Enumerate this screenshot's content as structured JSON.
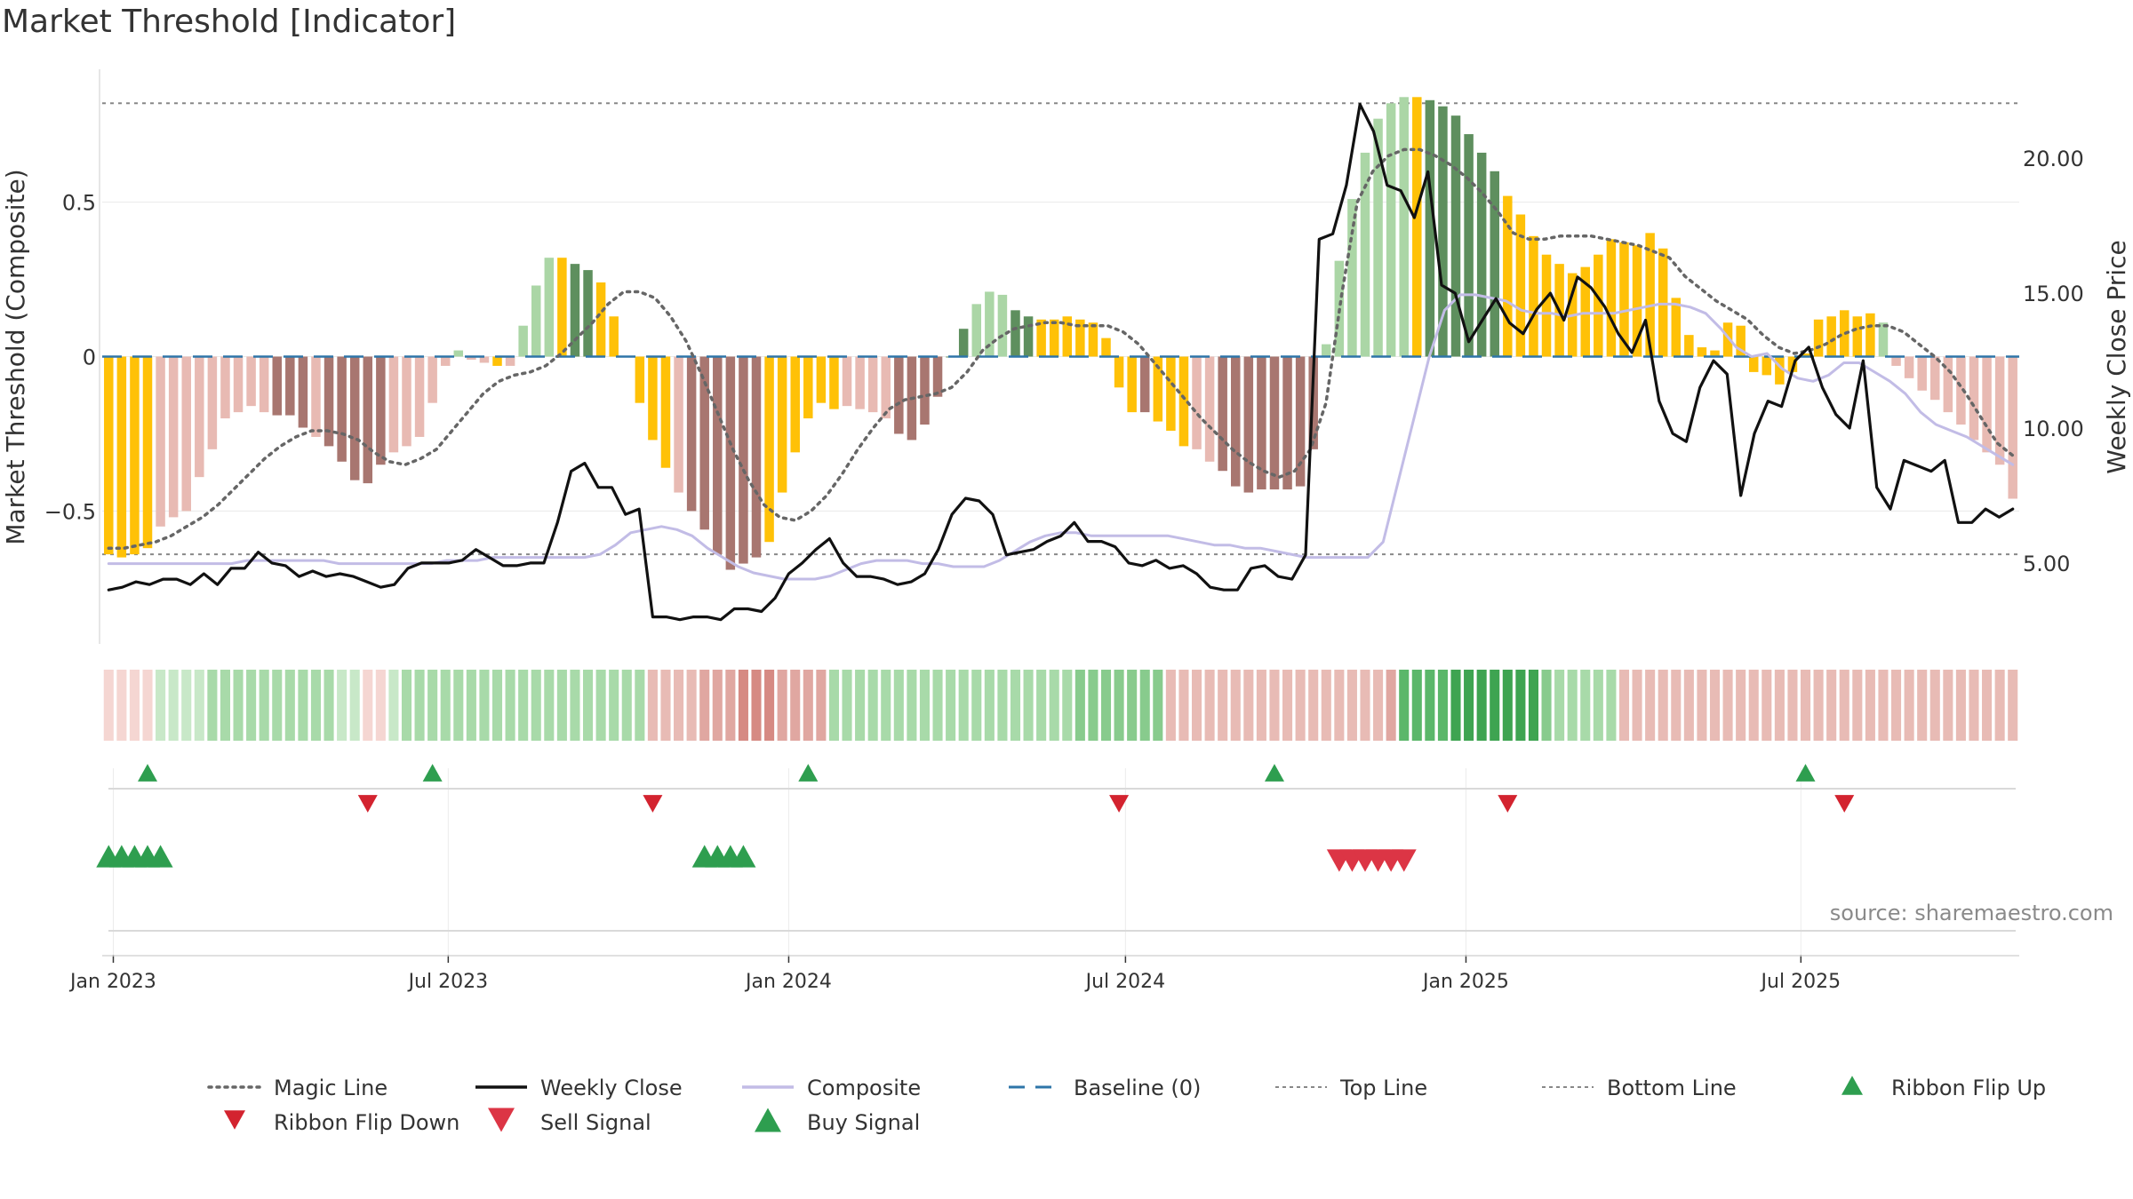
{
  "title": "Market Threshold [Indicator]",
  "source": "source: sharemaestro.com",
  "colors": {
    "gold": "#FFC107",
    "dark_red": "#A87670",
    "light_red": "#E8BAB3",
    "dark_green": "#5E8F5E",
    "light_green": "#ABD6A6",
    "close": "#111111",
    "composite": "#C2BCE6",
    "magic": "#666666",
    "baseline": "#2E75A8",
    "guide": "#888888",
    "flip_up": "#2E9E4F",
    "flip_down": "#D3232F",
    "sell": "#DC3545",
    "buy": "#2E9E4F"
  },
  "chart_data": {
    "type": "bar",
    "start_date": "2022-12-26",
    "period_days": 7,
    "ylabel": "Market Threshold (Composite)",
    "y2label": "Weekly Close Price",
    "ylim": [
      -0.93,
      0.93
    ],
    "y2lim": [
      2.0,
      23.3
    ],
    "yticks": [
      "0.5",
      "0",
      "−0.5"
    ],
    "y2ticks": [
      "20.00",
      "15.00",
      "10.00",
      "5.00"
    ],
    "xticks": [
      "Jan 2023",
      "Jul 2023",
      "Jan 2024",
      "Jul 2024",
      "Jan 2025",
      "Jul 2025"
    ],
    "top_line": 0.82,
    "bottom_line": -0.64,
    "bars": [
      -0.64,
      -0.65,
      -0.64,
      -0.62,
      -0.55,
      -0.52,
      -0.5,
      -0.39,
      -0.3,
      -0.2,
      -0.18,
      -0.16,
      -0.18,
      -0.19,
      -0.19,
      -0.23,
      -0.26,
      -0.29,
      -0.34,
      -0.4,
      -0.41,
      -0.35,
      -0.31,
      -0.29,
      -0.26,
      -0.15,
      -0.03,
      0.02,
      -0.01,
      -0.02,
      -0.03,
      -0.03,
      0.1,
      0.23,
      0.32,
      0.32,
      0.3,
      0.28,
      0.24,
      0.13,
      0.0,
      -0.15,
      -0.27,
      -0.36,
      -0.44,
      -0.5,
      -0.56,
      -0.64,
      -0.69,
      -0.67,
      -0.65,
      -0.6,
      -0.44,
      -0.31,
      -0.2,
      -0.15,
      -0.17,
      -0.16,
      -0.17,
      -0.18,
      -0.2,
      -0.25,
      -0.27,
      -0.22,
      -0.13,
      0.0,
      0.09,
      0.17,
      0.21,
      0.2,
      0.15,
      0.13,
      0.12,
      0.12,
      0.13,
      0.12,
      0.11,
      0.06,
      -0.1,
      -0.18,
      -0.18,
      -0.21,
      -0.24,
      -0.29,
      -0.3,
      -0.34,
      -0.37,
      -0.42,
      -0.44,
      -0.43,
      -0.43,
      -0.43,
      -0.42,
      -0.3,
      0.04,
      0.31,
      0.51,
      0.66,
      0.77,
      0.82,
      0.84,
      0.84,
      0.83,
      0.81,
      0.78,
      0.72,
      0.66,
      0.6,
      0.52,
      0.46,
      0.39,
      0.33,
      0.3,
      0.27,
      0.29,
      0.33,
      0.38,
      0.37,
      0.36,
      0.4,
      0.35,
      0.19,
      0.07,
      0.03,
      0.02,
      0.11,
      0.1,
      -0.05,
      -0.06,
      -0.09,
      -0.05,
      0.01,
      0.12,
      0.13,
      0.15,
      0.13,
      0.14,
      0.11,
      -0.03,
      -0.07,
      -0.11,
      -0.14,
      -0.18,
      -0.22,
      -0.27,
      -0.31,
      -0.35,
      -0.46
    ],
    "bar_classes": "GGGGLLLLLLLLLDDDLDDDDDLLLLLLLLGLLLLGDDGGGGGGLDDDDDDGGGGGGLLLLDDDDDDLLLDDGGGGGGGGDGGGLLDDDDDDDDLLLLLLLGDDDDDDGGGGGGGGGGGGGGGGGGGGGGGGGGGGGLLLLLLLLLLLLLLLLLLLLLLLLLLLLLLLLLLLLLLLLLLL",
    "close": [
      4.0,
      4.1,
      4.3,
      4.2,
      4.4,
      4.4,
      4.2,
      4.6,
      4.2,
      4.8,
      4.8,
      5.4,
      5.0,
      4.9,
      4.5,
      4.7,
      4.5,
      4.6,
      4.5,
      4.3,
      4.1,
      4.2,
      4.8,
      5.0,
      5.0,
      5.0,
      5.1,
      5.5,
      5.2,
      4.9,
      4.9,
      5.0,
      5.0,
      6.5,
      8.4,
      8.7,
      7.8,
      7.8,
      6.8,
      7.0,
      3.0,
      3.0,
      2.9,
      3.0,
      3.0,
      2.9,
      3.3,
      3.3,
      3.2,
      3.7,
      4.6,
      5.0,
      5.5,
      5.9,
      5.0,
      4.5,
      4.5,
      4.4,
      4.2,
      4.3,
      4.6,
      5.5,
      6.8,
      7.4,
      7.3,
      6.8,
      5.3,
      5.4,
      5.5,
      5.8,
      6.0,
      6.5,
      5.8,
      5.8,
      5.6,
      5.0,
      4.9,
      5.1,
      4.8,
      4.9,
      4.6,
      4.1,
      4.0,
      4.0,
      4.8,
      4.9,
      4.5,
      4.4,
      5.3,
      17.0,
      17.2,
      19.0,
      22.0,
      21.0,
      19.0,
      18.8,
      17.8,
      19.5,
      15.3,
      15.0,
      13.2,
      14.0,
      14.8,
      13.9,
      13.5,
      14.4,
      15.0,
      14.0,
      15.6,
      15.2,
      14.5,
      13.5,
      12.8,
      14.0,
      11.0,
      9.8,
      9.5,
      11.5,
      12.5,
      12.0,
      7.5,
      9.8,
      11.0,
      10.8,
      12.5,
      13.0,
      11.5,
      10.5,
      10.0,
      12.5,
      7.8,
      7.0,
      8.8,
      8.6,
      8.4,
      8.8,
      6.5,
      6.5,
      7.0,
      6.7,
      7.0
    ],
    "composite": [
      -0.67,
      -0.67,
      -0.67,
      -0.67,
      -0.67,
      -0.67,
      -0.67,
      -0.67,
      -0.67,
      -0.66,
      -0.66,
      -0.66,
      -0.66,
      -0.66,
      -0.66,
      -0.67,
      -0.67,
      -0.67,
      -0.67,
      -0.67,
      -0.67,
      -0.67,
      -0.66,
      -0.66,
      -0.66,
      -0.65,
      -0.65,
      -0.65,
      -0.65,
      -0.65,
      -0.65,
      -0.65,
      -0.64,
      -0.61,
      -0.57,
      -0.56,
      -0.55,
      -0.56,
      -0.58,
      -0.62,
      -0.65,
      -0.68,
      -0.7,
      -0.71,
      -0.72,
      -0.72,
      -0.72,
      -0.71,
      -0.69,
      -0.67,
      -0.66,
      -0.66,
      -0.66,
      -0.67,
      -0.67,
      -0.68,
      -0.68,
      -0.68,
      -0.66,
      -0.63,
      -0.6,
      -0.58,
      -0.57,
      -0.57,
      -0.58,
      -0.58,
      -0.58,
      -0.58,
      -0.58,
      -0.58,
      -0.59,
      -0.6,
      -0.61,
      -0.61,
      -0.62,
      -0.62,
      -0.63,
      -0.64,
      -0.65,
      -0.65,
      -0.65,
      -0.65,
      -0.65,
      -0.6,
      -0.4,
      -0.2,
      0.0,
      0.15,
      0.2,
      0.2,
      0.19,
      0.18,
      0.15,
      0.14,
      0.14,
      0.13,
      0.14,
      0.14,
      0.14,
      0.15,
      0.16,
      0.17,
      0.17,
      0.16,
      0.14,
      0.09,
      0.03,
      0.0,
      0.01,
      -0.04,
      -0.07,
      -0.08,
      -0.06,
      -0.02,
      -0.02,
      -0.05,
      -0.08,
      -0.12,
      -0.18,
      -0.22,
      -0.24,
      -0.26,
      -0.29,
      -0.32,
      -0.35
    ],
    "magic": [
      -0.62,
      -0.62,
      -0.61,
      -0.6,
      -0.58,
      -0.55,
      -0.52,
      -0.48,
      -0.43,
      -0.38,
      -0.33,
      -0.29,
      -0.26,
      -0.24,
      -0.24,
      -0.25,
      -0.27,
      -0.31,
      -0.34,
      -0.35,
      -0.33,
      -0.3,
      -0.24,
      -0.18,
      -0.12,
      -0.08,
      -0.06,
      -0.05,
      -0.03,
      0.01,
      0.06,
      0.11,
      0.17,
      0.21,
      0.21,
      0.19,
      0.13,
      0.05,
      -0.06,
      -0.18,
      -0.3,
      -0.4,
      -0.48,
      -0.52,
      -0.53,
      -0.5,
      -0.45,
      -0.38,
      -0.3,
      -0.23,
      -0.17,
      -0.14,
      -0.13,
      -0.12,
      -0.1,
      -0.05,
      0.02,
      0.06,
      0.09,
      0.1,
      0.11,
      0.11,
      0.1,
      0.1,
      0.1,
      0.08,
      0.04,
      -0.02,
      -0.08,
      -0.14,
      -0.2,
      -0.25,
      -0.3,
      -0.34,
      -0.37,
      -0.39,
      -0.37,
      -0.3,
      -0.15,
      0.2,
      0.5,
      0.6,
      0.65,
      0.67,
      0.67,
      0.65,
      0.62,
      0.58,
      0.53,
      0.47,
      0.4,
      0.38,
      0.38,
      0.39,
      0.39,
      0.39,
      0.38,
      0.37,
      0.36,
      0.34,
      0.32,
      0.26,
      0.22,
      0.18,
      0.15,
      0.12,
      0.07,
      0.03,
      0.01,
      0.02,
      0.04,
      0.07,
      0.09,
      0.1,
      0.1,
      0.08,
      0.04,
      0.0,
      -0.05,
      -0.12,
      -0.2,
      -0.28,
      -0.32
    ]
  },
  "ribbon": {
    "palette": {
      "1": "#F5D6D2",
      "2": "#E8BBB5",
      "3": "#E0A7A1",
      "4": "#D68A83",
      "5": "#C8E8C8",
      "6": "#A8DAA9",
      "7": "#88CB8D",
      "8": "#5BB76A",
      "9": "#3EA451"
    },
    "pattern": "1111555566666666665511566666666666666666662222333444333366666666666666666667777777222222222222222223888899999997666662222222222222222222222222222222222252222222222222222222222"
  },
  "markers": {
    "flip_up": [
      "2023-01-16",
      "2023-06-19",
      "2024-01-08",
      "2024-09-16",
      "2025-06-30"
    ],
    "flip_down": [
      "2023-05-15",
      "2023-10-16",
      "2024-06-24",
      "2025-01-20",
      "2025-07-21"
    ],
    "buy": [
      "2022-12-26",
      "2023-01-02",
      "2023-01-09",
      "2023-01-16",
      "2023-01-23",
      "2023-11-13",
      "2023-11-20",
      "2023-11-27",
      "2023-12-04"
    ],
    "sell": [
      "2024-10-21",
      "2024-10-28",
      "2024-11-04",
      "2024-11-11",
      "2024-11-18",
      "2024-11-25"
    ]
  },
  "legend": [
    {
      "label": "Magic Line",
      "kind": "dotted",
      "color": "#666666"
    },
    {
      "label": "Weekly Close",
      "kind": "solid",
      "color": "#111111"
    },
    {
      "label": "Composite",
      "kind": "solid",
      "color": "#C2BCE6"
    },
    {
      "label": "Baseline (0)",
      "kind": "dashed",
      "color": "#2E75A8"
    },
    {
      "label": "Top Line",
      "kind": "fine-dotted",
      "color": "#888888"
    },
    {
      "label": "Bottom Line",
      "kind": "fine-dotted",
      "color": "#888888"
    },
    {
      "label": "Ribbon Flip Up",
      "kind": "tri-up",
      "color": "#2E9E4F"
    },
    {
      "label": "Ribbon Flip Down",
      "kind": "tri-down",
      "color": "#D3232F"
    },
    {
      "label": "Sell Signal",
      "kind": "tri-down-lg",
      "color": "#DC3545"
    },
    {
      "label": "Buy Signal",
      "kind": "tri-up-lg",
      "color": "#2E9E4F"
    }
  ]
}
